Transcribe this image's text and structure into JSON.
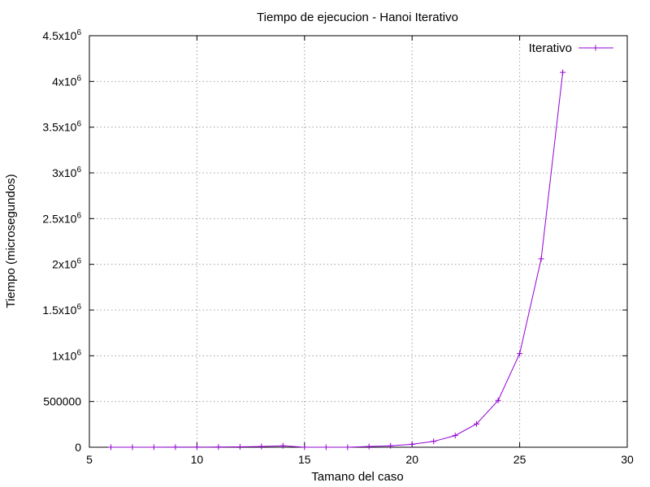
{
  "chart_data": {
    "type": "line",
    "title": "Tiempo de ejecucion - Hanoi Iterativo",
    "xlabel": "Tamano del caso",
    "ylabel": "Tiempo (microsegundos)",
    "xlim": [
      5,
      30
    ],
    "ylim": [
      0,
      4500000
    ],
    "grid": true,
    "legend_position": "top-right",
    "x_ticks": [
      {
        "value": 5,
        "label": "5"
      },
      {
        "value": 10,
        "label": "10"
      },
      {
        "value": 15,
        "label": "15"
      },
      {
        "value": 20,
        "label": "20"
      },
      {
        "value": 25,
        "label": "25"
      },
      {
        "value": 30,
        "label": "30"
      }
    ],
    "y_ticks": [
      {
        "value": 0,
        "label": "0",
        "exp": ""
      },
      {
        "value": 500000,
        "label": "500000",
        "exp": ""
      },
      {
        "value": 1000000,
        "label": "1x10",
        "exp": "6"
      },
      {
        "value": 1500000,
        "label": "1.5x10",
        "exp": "6"
      },
      {
        "value": 2000000,
        "label": "2x10",
        "exp": "6"
      },
      {
        "value": 2500000,
        "label": "2.5x10",
        "exp": "6"
      },
      {
        "value": 3000000,
        "label": "3x10",
        "exp": "6"
      },
      {
        "value": 3500000,
        "label": "3.5x10",
        "exp": "6"
      },
      {
        "value": 4000000,
        "label": "4x10",
        "exp": "6"
      },
      {
        "value": 4500000,
        "label": "4.5x10",
        "exp": "6"
      }
    ],
    "series": [
      {
        "name": "Iterativo",
        "color": "#9400d3",
        "marker": "plus",
        "x": [
          6,
          7,
          8,
          9,
          10,
          11,
          12,
          13,
          14,
          15,
          16,
          17,
          18,
          19,
          20,
          21,
          22,
          23,
          24,
          25,
          26,
          27
        ],
        "values": [
          60,
          120,
          250,
          500,
          1000,
          2000,
          4000,
          8000,
          16000,
          0,
          0,
          0,
          8000,
          16000,
          32000,
          64000,
          128000,
          256000,
          512000,
          1024000,
          2060000,
          4100000
        ]
      }
    ]
  }
}
